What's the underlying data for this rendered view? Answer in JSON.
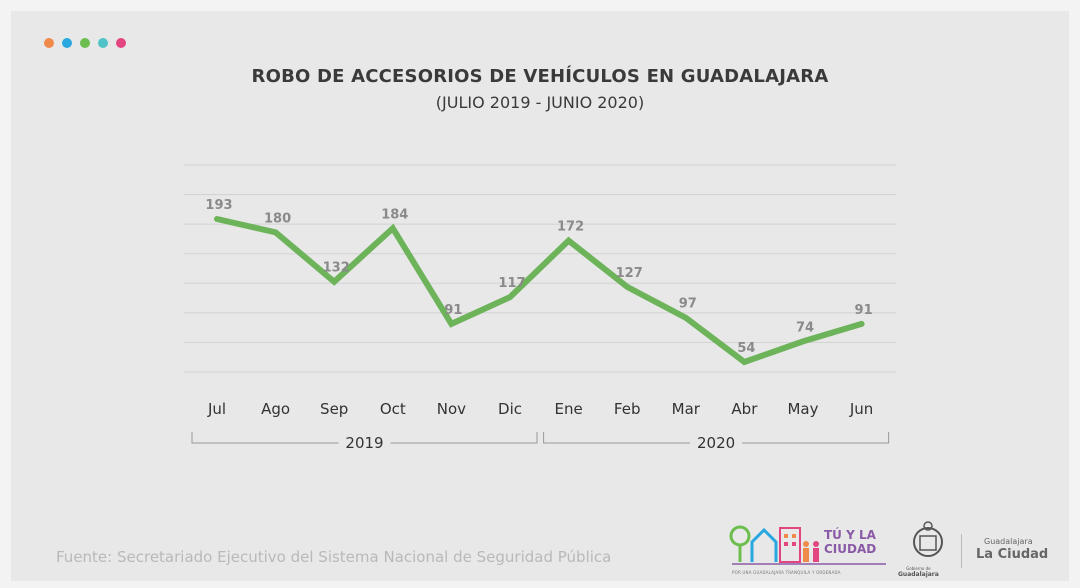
{
  "header": {
    "dot_colors": [
      "#f08a4b",
      "#29a8e0",
      "#6cbf4e",
      "#4fc3c8",
      "#e2457f"
    ]
  },
  "footer": {
    "source": "Fuente: Secretariado Ejecutivo del Sistema Nacional de Seguridad Pública"
  },
  "logos": {
    "tu_la_ciudad": "TÚ Y LA CIUDAD",
    "tagline": "POR UNA GUADALAJARA TRANQUILA Y ORDENADA",
    "gobierno_small": "Gobierno de",
    "gobierno_big": "Guadalajara",
    "gdl_small": "Guadalajara",
    "gdl_big": "La Ciudad"
  },
  "chart_data": {
    "type": "line",
    "title": "ROBO DE ACCESORIOS DE VEHÍCULOS EN GUADALAJARA",
    "subtitle": "(JULIO 2019 - JUNIO 2020)",
    "categories": [
      "Jul",
      "Ago",
      "Sep",
      "Oct",
      "Nov",
      "Dic",
      "Ene",
      "Feb",
      "Mar",
      "Abr",
      "May",
      "Jun"
    ],
    "values": [
      193,
      180,
      132,
      184,
      91,
      117,
      172,
      127,
      97,
      54,
      74,
      91
    ],
    "groups": [
      {
        "label": "2019",
        "start": 0,
        "end": 5
      },
      {
        "label": "2020",
        "start": 6,
        "end": 11
      }
    ],
    "line_color": "#6db35a",
    "grid": true,
    "legend": "none"
  }
}
